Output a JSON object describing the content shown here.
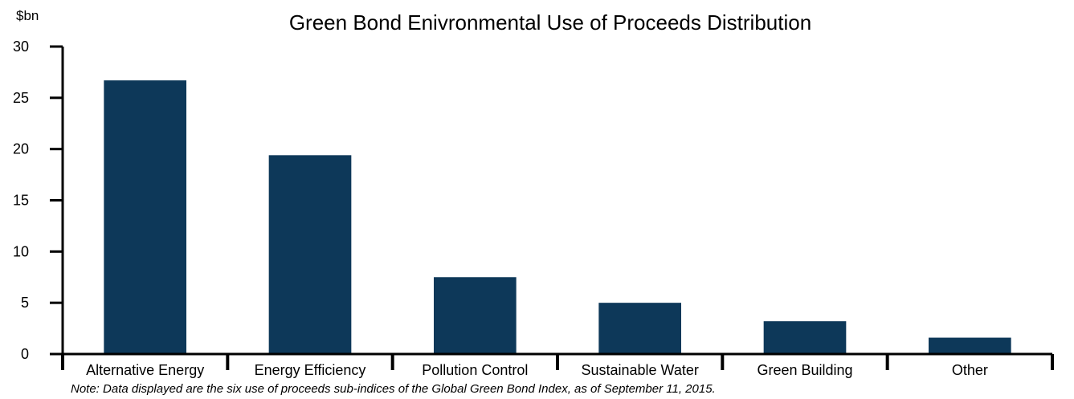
{
  "chart_data": {
    "type": "bar",
    "title": "Green Bond Enivronmental Use of Proceeds Distribution",
    "unit_label": "$bn",
    "categories": [
      "Alternative Energy",
      "Energy Efficiency",
      "Pollution Control",
      "Sustainable Water",
      "Green Building",
      "Other"
    ],
    "values": [
      26.7,
      19.4,
      7.5,
      5.0,
      3.2,
      1.6
    ],
    "ylim": [
      0,
      30
    ],
    "yticks": [
      "0",
      "5",
      "10",
      "15",
      "20",
      "25",
      "30"
    ],
    "grid": false,
    "legend": "none",
    "bar_color": "#0d3859",
    "note": "Note: Data displayed are the six use of proceeds sub-indices of the Global Green Bond Index, as of September 11, 2015."
  }
}
